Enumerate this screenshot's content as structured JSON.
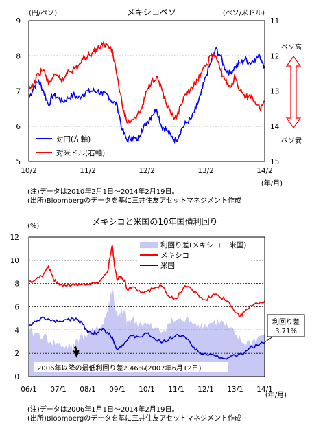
{
  "chart_data": [
    {
      "type": "line",
      "title": "メキシコペソ",
      "left_unit": "(円/ペソ)",
      "right_unit": "(ペソ/米ドル)",
      "x_unit": "(年/月)",
      "left_axis": {
        "ylim": [
          5,
          9
        ],
        "ticks": [
          "5",
          "6",
          "7",
          "8",
          "9"
        ]
      },
      "right_axis": {
        "ylim": [
          15,
          11
        ],
        "inverted": true,
        "ticks": [
          "11",
          "12",
          "13",
          "14",
          "15"
        ]
      },
      "x_range": [
        "2010-02",
        "2014-02"
      ],
      "x_ticks": [
        "10/2",
        "11/2",
        "12/2",
        "13/2",
        "14/2"
      ],
      "x_tick_t": [
        0,
        12,
        24,
        36,
        48
      ],
      "arrow_labels": {
        "top": "ペソ高",
        "bottom": "ペソ安"
      },
      "grid": "horizontal dotted",
      "legend_position": "bottom-left",
      "series": [
        {
          "name": "対円(左軸)",
          "axis": "left",
          "color": "#0000ff",
          "x": [
            0,
            1,
            2,
            3,
            4,
            5,
            6,
            7,
            8,
            9,
            10,
            11,
            12,
            13,
            14,
            15,
            16,
            17,
            18,
            19,
            20,
            21,
            22,
            23,
            24,
            25,
            26,
            27,
            28,
            29,
            30,
            31,
            32,
            33,
            34,
            35,
            36,
            37,
            38,
            39,
            40,
            41,
            42,
            43,
            44,
            45,
            46,
            47,
            48
          ],
          "values": [
            6.8,
            7.1,
            7.3,
            7.0,
            6.6,
            6.9,
            6.8,
            6.7,
            6.8,
            6.9,
            6.8,
            6.9,
            7.0,
            7.0,
            7.0,
            6.9,
            6.9,
            6.7,
            6.6,
            5.9,
            5.6,
            5.7,
            5.6,
            5.9,
            6.1,
            6.3,
            6.5,
            6.0,
            5.9,
            5.7,
            5.6,
            5.9,
            6.1,
            6.2,
            6.5,
            6.9,
            7.4,
            7.8,
            8.2,
            8.0,
            7.6,
            7.5,
            7.7,
            7.8,
            7.9,
            7.8,
            7.9,
            8.0,
            7.7
          ]
        },
        {
          "name": "対米ドル(右軸)",
          "axis": "right",
          "color": "#ff0000",
          "x": [
            0,
            1,
            2,
            3,
            4,
            5,
            6,
            7,
            8,
            9,
            10,
            11,
            12,
            13,
            14,
            15,
            16,
            17,
            18,
            19,
            20,
            21,
            22,
            23,
            24,
            25,
            26,
            27,
            28,
            29,
            30,
            31,
            32,
            33,
            34,
            35,
            36,
            37,
            38,
            39,
            40,
            41,
            42,
            43,
            44,
            45,
            46,
            47,
            48
          ],
          "values": [
            13.0,
            12.8,
            12.5,
            12.4,
            12.8,
            12.6,
            12.6,
            12.7,
            12.4,
            12.4,
            12.3,
            12.1,
            12.0,
            11.9,
            11.8,
            11.7,
            11.7,
            11.8,
            12.6,
            13.4,
            13.9,
            13.8,
            13.7,
            13.5,
            13.0,
            12.7,
            12.6,
            12.9,
            13.4,
            13.7,
            13.8,
            13.4,
            13.1,
            12.9,
            12.8,
            12.5,
            12.3,
            12.0,
            12.0,
            12.4,
            12.7,
            12.9,
            12.6,
            13.0,
            13.2,
            13.1,
            13.3,
            13.5,
            13.3
          ]
        }
      ]
    },
    {
      "type": "area",
      "title": "メキシコと米国の10年国債利回り",
      "y_unit": "(%)",
      "x_unit": "(年/月)",
      "ylim": [
        0,
        12
      ],
      "y_ticks": [
        "0",
        "2",
        "4",
        "6",
        "8",
        "10",
        "12"
      ],
      "x_range": [
        "2006-01",
        "2014-01"
      ],
      "x_ticks": [
        "06/1",
        "07/1",
        "08/1",
        "09/1",
        "10/1",
        "11/1",
        "12/1",
        "13/1",
        "14/1"
      ],
      "x_tick_t": [
        0,
        12,
        24,
        36,
        48,
        60,
        72,
        84,
        96
      ],
      "grid": "horizontal dotted",
      "legend_position": "top-right",
      "series": [
        {
          "name": "利回り差(メキシコ− 米国)",
          "kind": "area",
          "color": "#c8c8f5",
          "x": [
            0,
            3,
            6,
            9,
            12,
            15,
            17,
            18,
            19,
            20,
            21,
            24,
            27,
            30,
            32,
            33,
            34,
            35,
            36,
            37,
            38,
            39,
            40,
            42,
            45,
            48,
            51,
            54,
            57,
            60,
            63,
            66,
            69,
            72,
            75,
            78,
            81,
            84,
            87,
            90,
            93,
            96
          ],
          "values": [
            3.8,
            3.7,
            3.5,
            3.0,
            2.8,
            2.6,
            2.46,
            2.6,
            3.0,
            3.2,
            3.5,
            3.6,
            3.9,
            4.5,
            5.6,
            6.7,
            7.8,
            6.2,
            5.0,
            5.3,
            5.5,
            5.6,
            4.8,
            4.9,
            4.6,
            4.5,
            4.1,
            3.8,
            4.6,
            4.9,
            4.8,
            4.9,
            4.5,
            4.4,
            4.7,
            4.7,
            4.2,
            3.6,
            2.9,
            2.9,
            3.3,
            3.71
          ]
        },
        {
          "name": "メキシコ",
          "kind": "line",
          "color": "#ff0000",
          "x": [
            0,
            3,
            6,
            8,
            10,
            12,
            15,
            18,
            21,
            24,
            27,
            30,
            32,
            33,
            34,
            35,
            36,
            37,
            38,
            39,
            40,
            42,
            45,
            48,
            51,
            54,
            57,
            60,
            63,
            66,
            69,
            72,
            75,
            78,
            81,
            84,
            86,
            88,
            90,
            93,
            96
          ],
          "values": [
            8.1,
            8.4,
            8.8,
            9.5,
            8.4,
            8.0,
            7.8,
            8.0,
            7.9,
            7.9,
            8.0,
            8.5,
            9.0,
            10.2,
            11.3,
            9.3,
            8.3,
            8.6,
            8.4,
            8.3,
            7.5,
            7.7,
            7.4,
            7.3,
            7.6,
            7.8,
            6.9,
            6.7,
            7.7,
            7.6,
            7.0,
            6.6,
            7.1,
            6.8,
            6.5,
            5.5,
            5.2,
            5.6,
            6.1,
            6.3,
            6.5
          ]
        },
        {
          "name": "米国",
          "kind": "line",
          "color": "#0000cc",
          "x": [
            0,
            3,
            6,
            9,
            12,
            15,
            18,
            20,
            22,
            24,
            26,
            28,
            30,
            32,
            34,
            36,
            38,
            40,
            42,
            45,
            48,
            51,
            54,
            57,
            60,
            63,
            66,
            69,
            72,
            75,
            78,
            81,
            84,
            87,
            90,
            93,
            96
          ],
          "values": [
            4.4,
            4.7,
            5.1,
            4.8,
            4.7,
            4.9,
            5.0,
            4.9,
            4.5,
            3.8,
            3.7,
            3.8,
            4.1,
            3.8,
            3.4,
            2.3,
            2.7,
            3.1,
            3.5,
            3.4,
            3.7,
            3.3,
            2.9,
            3.2,
            3.6,
            3.5,
            2.8,
            2.1,
            2.0,
            1.9,
            1.6,
            1.6,
            1.8,
            1.9,
            2.5,
            2.7,
            2.9
          ]
        }
      ],
      "annotations": [
        {
          "text": "2006年以降の最低利回り差2.46%(2007年6月12日)",
          "x": 17,
          "y": 2.46
        },
        {
          "text": "利回り差 3.71%",
          "x": 96,
          "y": 3.71
        }
      ]
    }
  ],
  "notes": {
    "chart1_note": "(注)データは2010年2月1日～2014年2月19日。",
    "chart1_source": "(出所)Bloombergのデータを基に三井住友アセットマネジメント作成",
    "chart2_note": "(注)データは2006年1月1日～2014年2月19日。",
    "chart2_source": "(出所)Bloombergのデータを基に三井住友アセットマネジメント作成"
  },
  "annotation_labels": {
    "min_spread": "2006年以降の最低利回り差2.46%(2007年6月12日)",
    "spread_line1": "利回り差",
    "spread_line2": "3.71%"
  }
}
